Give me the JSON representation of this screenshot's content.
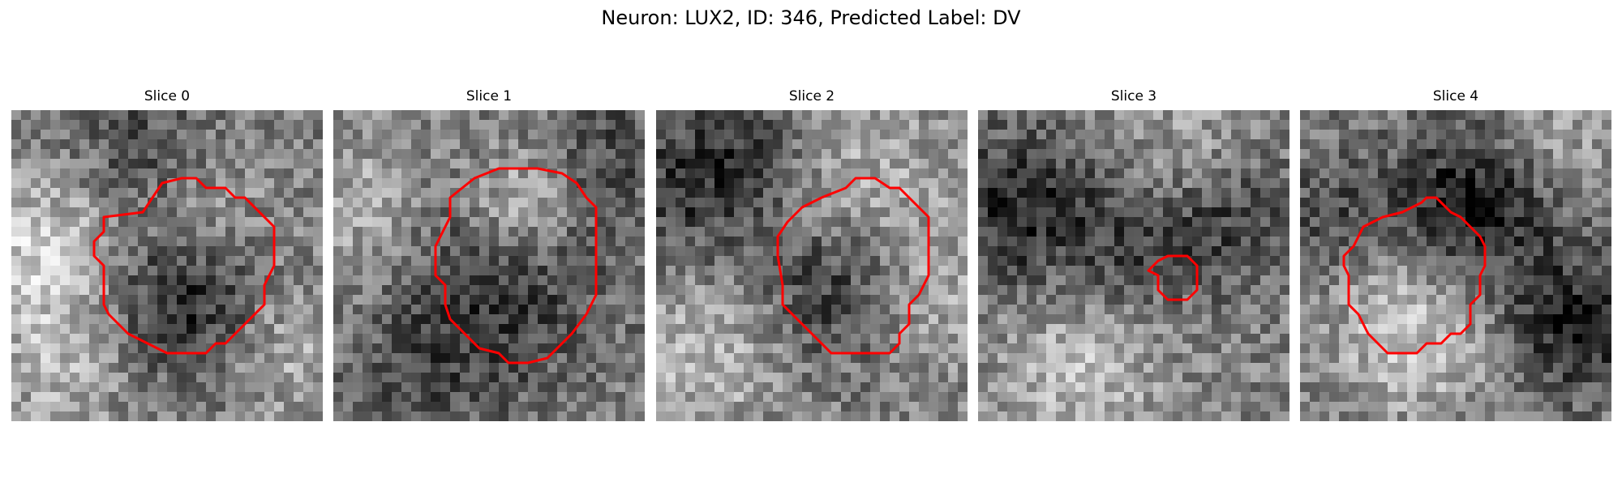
{
  "figure": {
    "title": "Neuron: LUX2, ID: 346, Predicted Label: DV"
  },
  "panels": [
    {
      "title": "Slice 0"
    },
    {
      "title": "Slice 1"
    },
    {
      "title": "Slice 2"
    },
    {
      "title": "Slice 3"
    },
    {
      "title": "Slice 4"
    }
  ],
  "colors": {
    "contour": "#ff0000",
    "background": "#ffffff"
  }
}
